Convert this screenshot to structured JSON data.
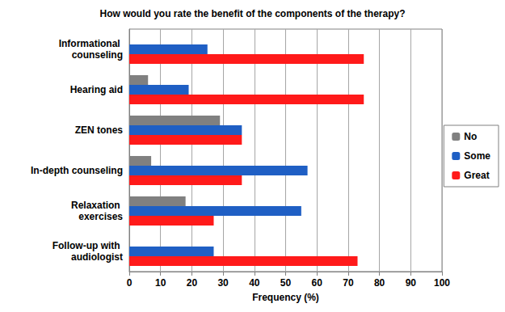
{
  "chart_data": {
    "type": "bar",
    "orientation": "horizontal",
    "title": "How would you rate the benefit of the components of the therapy?",
    "xlabel": "Frequency (%)",
    "categories": [
      "Informational counseling",
      "Hearing aid",
      "ZEN tones",
      "In-depth counseling",
      "Relaxation exercises",
      "Follow-up with audiologist"
    ],
    "series": [
      {
        "name": "No",
        "color": "#808080",
        "values": [
          0,
          6,
          29,
          7,
          18,
          0
        ]
      },
      {
        "name": "Some",
        "color": "#1f5fc4",
        "values": [
          25,
          19,
          36,
          57,
          55,
          27
        ]
      },
      {
        "name": "Great",
        "color": "#ff1a1a",
        "values": [
          75,
          75,
          36,
          36,
          27,
          73
        ]
      }
    ],
    "xlim": [
      0,
      100
    ],
    "xticks": [
      0,
      10,
      20,
      30,
      40,
      50,
      60,
      70,
      80,
      90,
      100
    ],
    "grid": true,
    "legend": "right"
  }
}
